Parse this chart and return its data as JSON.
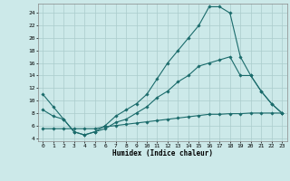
{
  "title": "",
  "xlabel": "Humidex (Indice chaleur)",
  "ylabel": "",
  "bg_color": "#cce9e9",
  "grid_color": "#aacccc",
  "line_color": "#1a6b6b",
  "xlim": [
    -0.5,
    23.5
  ],
  "ylim": [
    3.5,
    25.5
  ],
  "xticks": [
    0,
    1,
    2,
    3,
    4,
    5,
    6,
    7,
    8,
    9,
    10,
    11,
    12,
    13,
    14,
    15,
    16,
    17,
    18,
    19,
    20,
    21,
    22,
    23
  ],
  "yticks": [
    4,
    6,
    8,
    10,
    12,
    14,
    16,
    18,
    20,
    22,
    24
  ],
  "line1_x": [
    0,
    1,
    2,
    3,
    4,
    5,
    6,
    7,
    8,
    9,
    10,
    11,
    12,
    13,
    14,
    15,
    16,
    17,
    18,
    19,
    20,
    21,
    22,
    23
  ],
  "line1_y": [
    11,
    9,
    7,
    5,
    4.5,
    5,
    6,
    7.5,
    8.5,
    9.5,
    11,
    13.5,
    16,
    18,
    20,
    22,
    25,
    25,
    24,
    17,
    14,
    11.5,
    9.5,
    8
  ],
  "line2_x": [
    0,
    1,
    2,
    3,
    4,
    5,
    6,
    7,
    8,
    9,
    10,
    11,
    12,
    13,
    14,
    15,
    16,
    17,
    18,
    19,
    20,
    21,
    22,
    23
  ],
  "line2_y": [
    8.5,
    7.5,
    7,
    5,
    4.5,
    5,
    5.5,
    6.5,
    7,
    8,
    9,
    10.5,
    11.5,
    13,
    14,
    15.5,
    16,
    16.5,
    17,
    14,
    14,
    11.5,
    9.5,
    8
  ],
  "line3_x": [
    0,
    1,
    2,
    3,
    4,
    5,
    6,
    7,
    8,
    9,
    10,
    11,
    12,
    13,
    14,
    15,
    16,
    17,
    18,
    19,
    20,
    21,
    22,
    23
  ],
  "line3_y": [
    5.5,
    5.5,
    5.5,
    5.5,
    5.5,
    5.5,
    5.8,
    6.0,
    6.2,
    6.4,
    6.6,
    6.8,
    7.0,
    7.2,
    7.4,
    7.6,
    7.8,
    7.8,
    7.9,
    7.9,
    8.0,
    8.0,
    8.0,
    8.0
  ]
}
